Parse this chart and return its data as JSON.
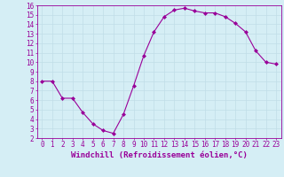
{
  "x": [
    0,
    1,
    2,
    3,
    4,
    5,
    6,
    7,
    8,
    9,
    10,
    11,
    12,
    13,
    14,
    15,
    16,
    17,
    18,
    19,
    20,
    21,
    22,
    23
  ],
  "y": [
    8,
    8,
    6.2,
    6.2,
    4.7,
    3.5,
    2.8,
    2.5,
    4.5,
    7.5,
    10.7,
    13.2,
    14.8,
    15.5,
    15.7,
    15.4,
    15.2,
    15.2,
    14.8,
    14.1,
    13.2,
    11.2,
    10.0,
    9.8
  ],
  "line_color": "#990099",
  "marker": "D",
  "markersize": 2.0,
  "linewidth": 0.8,
  "xlabel": "Windchill (Refroidissement éolien,°C)",
  "xlim": [
    -0.5,
    23.5
  ],
  "ylim": [
    2,
    16
  ],
  "yticks": [
    2,
    3,
    4,
    5,
    6,
    7,
    8,
    9,
    10,
    11,
    12,
    13,
    14,
    15,
    16
  ],
  "xticks": [
    0,
    1,
    2,
    3,
    4,
    5,
    6,
    7,
    8,
    9,
    10,
    11,
    12,
    13,
    14,
    15,
    16,
    17,
    18,
    19,
    20,
    21,
    22,
    23
  ],
  "bg_color": "#d5eef5",
  "grid_color": "#c0dde8",
  "tick_color": "#990099",
  "label_color": "#990099",
  "xlabel_fontsize": 6.5,
  "tick_fontsize": 5.5
}
